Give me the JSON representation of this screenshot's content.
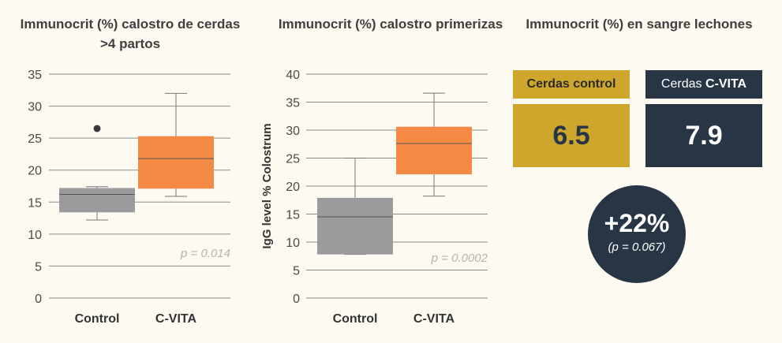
{
  "chart_data": [
    {
      "type": "box",
      "title": "Immunocrit (%) calostro de cerdas >4 partos",
      "ylabel": "",
      "ylim": [
        0,
        35
      ],
      "yticks": [
        0,
        5,
        10,
        15,
        20,
        25,
        30,
        35
      ],
      "categories": [
        "Control",
        "C-VITA"
      ],
      "boxes": [
        {
          "min": 12.2,
          "q1": 13.4,
          "median": 16.2,
          "q3": 17.2,
          "max": 17.4,
          "outliers": [
            26.5
          ],
          "color": "#9b9b9d"
        },
        {
          "min": 15.9,
          "q1": 17.1,
          "median": 21.8,
          "q3": 25.3,
          "max": 32.0,
          "outliers": [],
          "color": "#f58a45"
        }
      ],
      "annotation": "p = 0.014",
      "grid": true
    },
    {
      "type": "box",
      "title": "Immunocrit (%) calostro primerizas",
      "ylabel": "IgG level % Colostrum",
      "ylim": [
        0,
        40
      ],
      "yticks": [
        0,
        5,
        10,
        15,
        20,
        25,
        30,
        35,
        40
      ],
      "categories": [
        "Control",
        "C-VITA"
      ],
      "boxes": [
        {
          "min": 7.8,
          "q1": 7.8,
          "median": 14.5,
          "q3": 17.9,
          "max": 25.0,
          "outliers": [],
          "color": "#9b9b9d"
        },
        {
          "min": 18.2,
          "q1": 22.1,
          "median": 27.6,
          "q3": 30.6,
          "max": 36.6,
          "outliers": [],
          "color": "#f58a45"
        }
      ],
      "annotation": "p = 0.0002",
      "grid": true
    }
  ],
  "stats": {
    "title": "Immunocrit (%) en sangre lechones",
    "control_label": "Cerdas control",
    "control_value": "6.5",
    "cvita_label_prefix": "Cerdas ",
    "cvita_label_bold": "C-VITA",
    "cvita_value": "7.9",
    "diff": "+22%",
    "diff_p": "(p = 0.067)",
    "colors": {
      "gold": "#cfa62c",
      "navy": "#283545"
    }
  }
}
